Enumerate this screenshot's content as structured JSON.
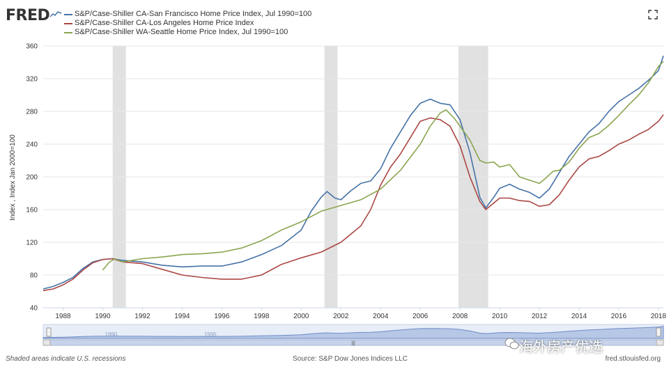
{
  "header": {
    "logo": "FRED"
  },
  "colors": {
    "sf": "#4572a7",
    "la": "#aa4643",
    "sea": "#89a54e",
    "recession": "#e1e1e1",
    "navigator_fill": "#b6c8e6",
    "navigator_track": "#7a8fbf"
  },
  "footer": {
    "note": "Shaded areas indicate U.S. recessions",
    "source": "Source: S&P Dow Jones Indices LLC",
    "site": "fred.stlouisfed.org"
  },
  "watermark": {
    "brand": "海外房产优选"
  },
  "chart_data": {
    "type": "line",
    "ylabel": "Index , Index Jan 2000=100",
    "ylim": [
      40,
      360
    ],
    "yticks": [
      40,
      80,
      120,
      160,
      200,
      240,
      280,
      320,
      360
    ],
    "xlim": [
      1987.0,
      2018.25
    ],
    "xticks": [
      "1988",
      "1990",
      "1992",
      "1994",
      "1996",
      "1998",
      "2000",
      "2002",
      "2004",
      "2006",
      "2008",
      "2010",
      "2012",
      "2014",
      "2016",
      "2018"
    ],
    "grid": "horizontal",
    "legend_position": "top-left",
    "recessions": [
      [
        1990.5,
        1991.17
      ],
      [
        2001.17,
        2001.83
      ],
      [
        2007.92,
        2009.42
      ]
    ],
    "navigator_ticks": [
      "1990",
      "1995"
    ],
    "series": [
      {
        "name": "S&P/Case-Shiller CA-San Francisco Home Price Index, Jul 1990=100",
        "color_key": "sf",
        "x": [
          1987.0,
          1987.5,
          1988.0,
          1988.5,
          1989.0,
          1989.5,
          1990.0,
          1990.5,
          1991.0,
          1992.0,
          1993.0,
          1994.0,
          1995.0,
          1996.0,
          1997.0,
          1998.0,
          1999.0,
          2000.0,
          2000.5,
          2001.0,
          2001.3,
          2001.7,
          2002.0,
          2002.5,
          2003.0,
          2003.5,
          2004.0,
          2004.5,
          2005.0,
          2005.5,
          2006.0,
          2006.5,
          2007.0,
          2007.5,
          2008.0,
          2008.5,
          2009.0,
          2009.3,
          2009.7,
          2010.0,
          2010.5,
          2011.0,
          2011.5,
          2012.0,
          2012.5,
          2013.0,
          2013.5,
          2014.0,
          2014.5,
          2015.0,
          2015.5,
          2016.0,
          2016.5,
          2017.0,
          2017.5,
          2018.0,
          2018.25
        ],
        "y": [
          63,
          66,
          71,
          77,
          88,
          96,
          99,
          100,
          98,
          96,
          92,
          90,
          91,
          91,
          96,
          105,
          116,
          135,
          158,
          175,
          182,
          174,
          172,
          183,
          192,
          195,
          210,
          235,
          255,
          275,
          290,
          295,
          290,
          288,
          270,
          230,
          175,
          162,
          175,
          186,
          191,
          185,
          181,
          174,
          185,
          205,
          225,
          240,
          255,
          265,
          280,
          292,
          300,
          308,
          318,
          330,
          348
        ]
      },
      {
        "name": "S&P/Case-Shiller CA-Los Angeles Home Price Index",
        "color_key": "la",
        "x": [
          1987.0,
          1987.5,
          1988.0,
          1988.5,
          1989.0,
          1989.5,
          1990.0,
          1990.5,
          1991.0,
          1992.0,
          1993.0,
          1994.0,
          1995.0,
          1996.0,
          1997.0,
          1998.0,
          1999.0,
          2000.0,
          2001.0,
          2002.0,
          2003.0,
          2003.5,
          2004.0,
          2004.5,
          2005.0,
          2005.5,
          2006.0,
          2006.5,
          2007.0,
          2007.5,
          2008.0,
          2008.5,
          2009.0,
          2009.3,
          2009.7,
          2010.0,
          2010.5,
          2011.0,
          2011.5,
          2012.0,
          2012.5,
          2013.0,
          2013.5,
          2014.0,
          2014.5,
          2015.0,
          2015.5,
          2016.0,
          2016.5,
          2017.0,
          2017.5,
          2018.0,
          2018.25
        ],
        "y": [
          61,
          63,
          68,
          75,
          86,
          95,
          99,
          100,
          96,
          94,
          87,
          80,
          77,
          75,
          75,
          80,
          93,
          101,
          108,
          120,
          140,
          160,
          190,
          212,
          228,
          248,
          268,
          272,
          270,
          262,
          238,
          200,
          170,
          160,
          168,
          174,
          174,
          171,
          170,
          164,
          166,
          178,
          196,
          212,
          222,
          225,
          232,
          240,
          245,
          252,
          258,
          268,
          276
        ]
      },
      {
        "name": "S&P/Case-Shiller WA-Seattle Home Price Index, Jul 1990=100",
        "color_key": "sea",
        "x": [
          1990.0,
          1990.3,
          1990.6,
          1991.0,
          1992.0,
          1993.0,
          1994.0,
          1995.0,
          1996.0,
          1997.0,
          1998.0,
          1999.0,
          2000.0,
          2001.0,
          2002.0,
          2003.0,
          2004.0,
          2005.0,
          2006.0,
          2006.5,
          2007.0,
          2007.3,
          2007.7,
          2008.0,
          2008.5,
          2009.0,
          2009.3,
          2009.7,
          2010.0,
          2010.5,
          2011.0,
          2011.5,
          2012.0,
          2012.3,
          2012.7,
          2013.0,
          2013.5,
          2014.0,
          2014.5,
          2015.0,
          2015.5,
          2016.0,
          2016.5,
          2017.0,
          2017.5,
          2018.0,
          2018.25
        ],
        "y": [
          86,
          95,
          100,
          96,
          100,
          102,
          105,
          106,
          108,
          113,
          122,
          135,
          145,
          158,
          165,
          172,
          185,
          208,
          240,
          262,
          278,
          282,
          272,
          262,
          245,
          220,
          217,
          218,
          212,
          215,
          200,
          196,
          192,
          198,
          207,
          208,
          218,
          235,
          248,
          253,
          263,
          275,
          288,
          300,
          315,
          335,
          341
        ]
      }
    ]
  }
}
